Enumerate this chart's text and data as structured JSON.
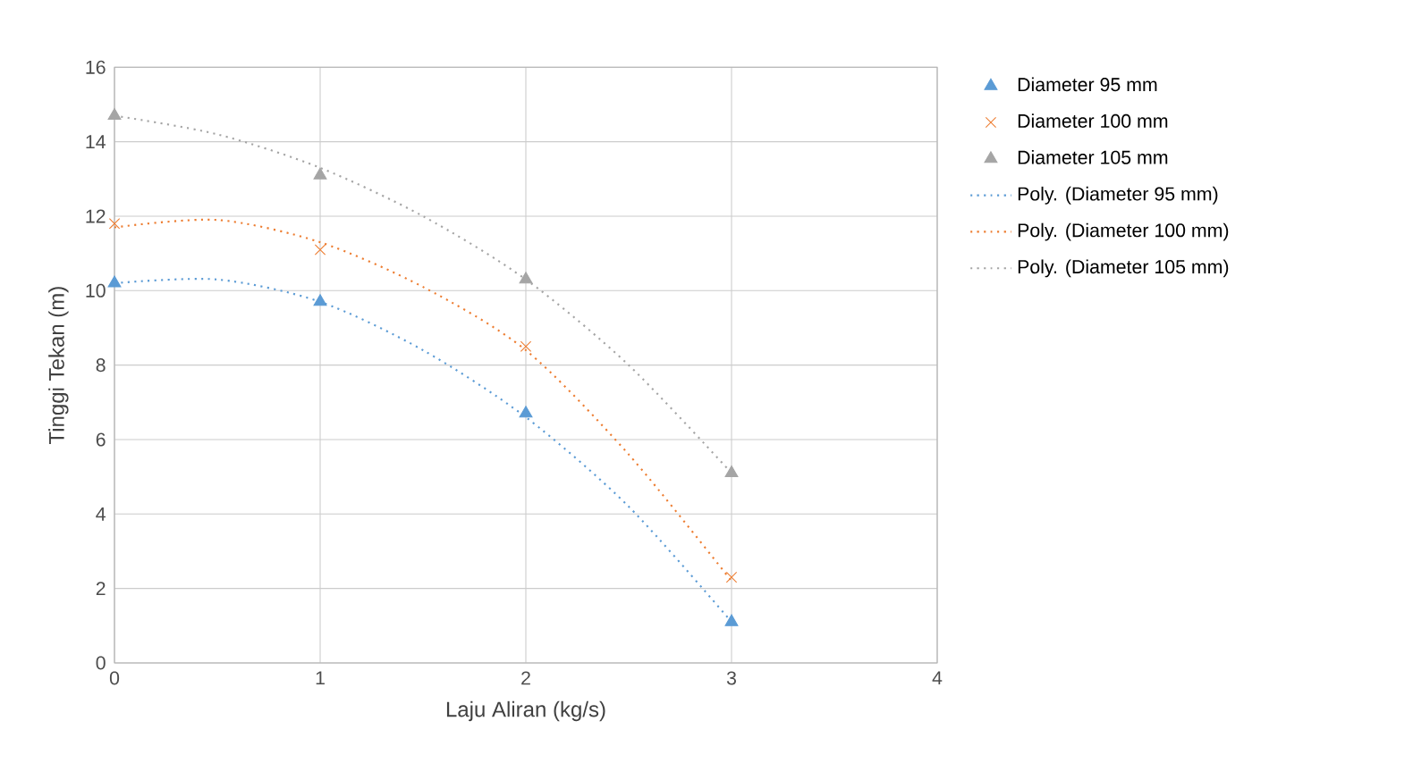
{
  "chart_data": {
    "type": "scatter",
    "xlabel": "Laju Aliran (kg/s)",
    "ylabel": "Tinggi Tekan (m)",
    "xlim": [
      0,
      4
    ],
    "ylim": [
      0,
      16
    ],
    "xticks": [
      0,
      1,
      2,
      3,
      4
    ],
    "yticks": [
      0,
      2,
      4,
      6,
      8,
      10,
      12,
      14,
      16
    ],
    "grid": true,
    "legend": "right",
    "series": [
      {
        "name": "Diameter 95 mm",
        "marker": "triangle",
        "color": "#5b9bd5",
        "x": [
          0,
          1,
          2,
          3
        ],
        "values": [
          10.2,
          9.7,
          6.7,
          1.1
        ]
      },
      {
        "name": "Diameter 100 mm",
        "marker": "cross",
        "color": "#ed7d31",
        "x": [
          0,
          1,
          2,
          3
        ],
        "values": [
          11.8,
          11.1,
          8.5,
          2.3
        ]
      },
      {
        "name": "Diameter 105 mm",
        "marker": "triangle",
        "color": "#a5a5a5",
        "x": [
          0,
          1,
          2,
          3
        ],
        "values": [
          14.7,
          13.1,
          10.3,
          5.1
        ]
      },
      {
        "name": "Poly. (Diameter 95 mm)",
        "type": "line",
        "line_style": "dotted",
        "color": "#5b9bd5",
        "x": [
          0,
          0.5,
          1,
          1.5,
          2,
          2.5,
          3
        ],
        "values": [
          10.2,
          10.3,
          9.7,
          8.4,
          6.6,
          4.2,
          1.1
        ]
      },
      {
        "name": "Poly. (Diameter 100 mm)",
        "type": "line",
        "line_style": "dotted",
        "color": "#ed7d31",
        "x": [
          0,
          0.5,
          1,
          1.5,
          2,
          2.5,
          3
        ],
        "values": [
          11.7,
          11.9,
          11.3,
          10.1,
          8.4,
          5.6,
          2.2
        ]
      },
      {
        "name": "Poly. (Diameter 105 mm)",
        "type": "line",
        "line_style": "dotted",
        "color": "#a5a5a5",
        "x": [
          0,
          0.5,
          1,
          1.5,
          2,
          2.5,
          3
        ],
        "values": [
          14.7,
          14.2,
          13.3,
          12.0,
          10.3,
          8.0,
          5.1
        ]
      }
    ]
  }
}
